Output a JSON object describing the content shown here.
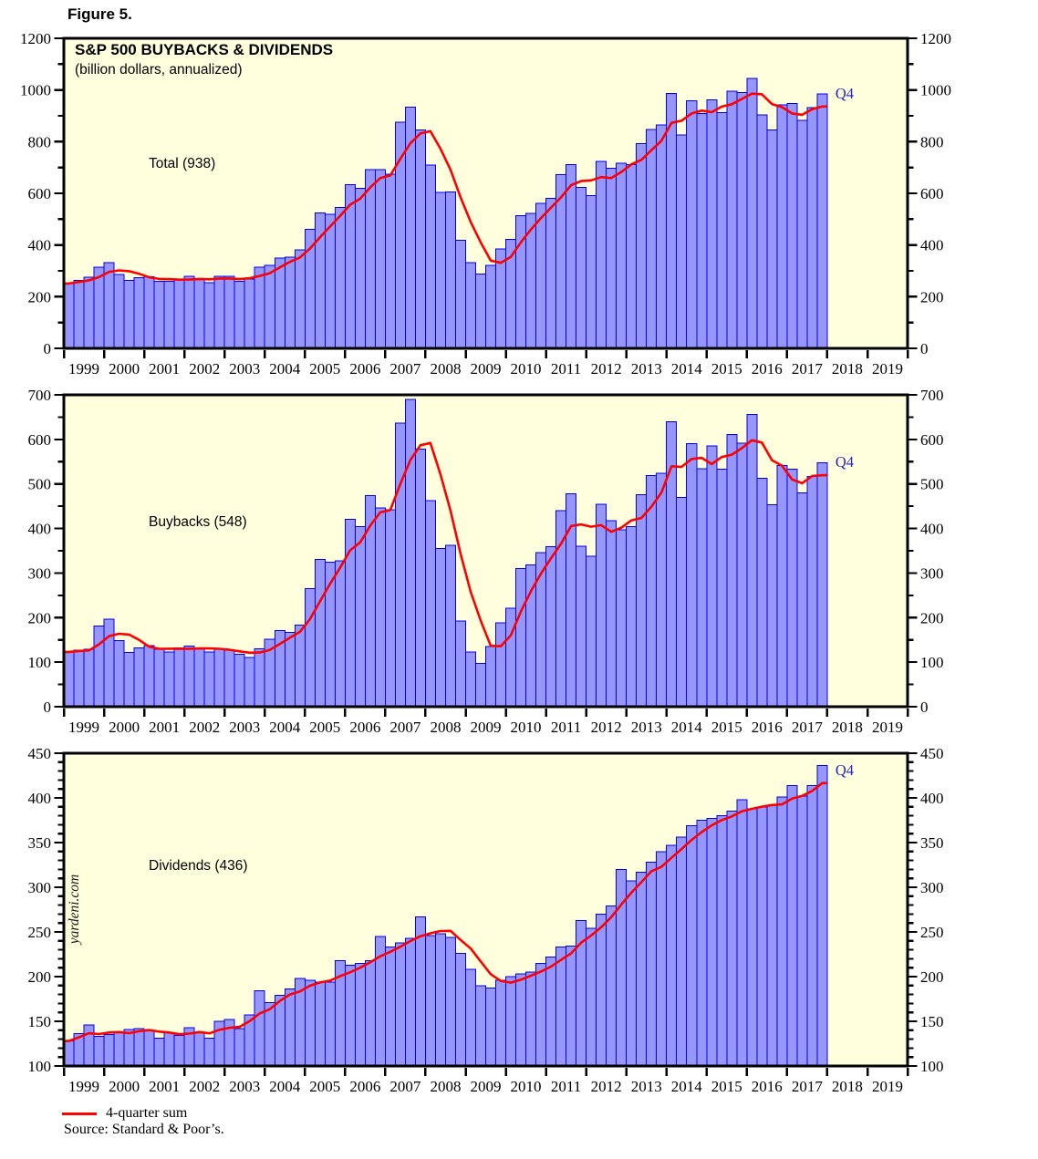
{
  "figure_label": "Figure 5.",
  "title": "S&P 500 BUYBACKS & DIVIDENDS",
  "subtitle": "(billion dollars, annualized)",
  "legend": {
    "four_quarter_sum": "4-quarter sum"
  },
  "source": "Source: Standard & Poor’s.",
  "watermark": "yardeni.com",
  "colors": {
    "plot_bg": "#FFFFDD",
    "bar_fill": "#9796FA",
    "bar_border": "#0000EE",
    "line_red": "#FF0000",
    "frame": "#000000",
    "q4_label": "#2222CC",
    "text": "#000000"
  },
  "x_axis": {
    "years": [
      "1999",
      "2000",
      "2001",
      "2002",
      "2003",
      "2004",
      "2005",
      "2006",
      "2007",
      "2008",
      "2009",
      "2010",
      "2011",
      "2012",
      "2013",
      "2014",
      "2015",
      "2016",
      "2017",
      "2018",
      "2019"
    ],
    "quarters_plotted": 76,
    "first_quarter": "1999-Q1",
    "last_quarter": "2017-Q4"
  },
  "chart_data": [
    {
      "type": "bar",
      "label": "Total (938)",
      "end_label": "Q4",
      "line": "4-quarter sum",
      "ylim": [
        0,
        1200
      ],
      "yticks": [
        0,
        200,
        400,
        600,
        800,
        1000,
        1200
      ],
      "minor_tick_step": 100,
      "values": [
        251,
        263,
        275,
        314,
        332,
        286,
        263,
        274,
        277,
        260,
        260,
        266,
        279,
        270,
        254,
        279,
        279,
        260,
        268,
        314,
        322,
        350,
        353,
        381,
        461,
        525,
        518,
        545,
        634,
        619,
        692,
        691,
        675,
        875,
        933,
        845,
        709,
        603,
        606,
        418,
        331,
        287,
        322,
        384,
        421,
        513,
        523,
        561,
        581,
        673,
        712,
        623,
        592,
        724,
        697,
        717,
        711,
        793,
        847,
        864,
        987,
        826,
        959,
        909,
        962,
        913,
        996,
        990,
        1044,
        903,
        845,
        942,
        947,
        882,
        931,
        984
      ]
    },
    {
      "type": "bar",
      "label": "Buybacks (548)",
      "end_label": "Q4",
      "line": "4-quarter sum",
      "ylim": [
        0,
        700
      ],
      "yticks": [
        0,
        100,
        200,
        300,
        400,
        500,
        600,
        700
      ],
      "minor_tick_step": 50,
      "values": [
        123,
        127,
        129,
        181,
        197,
        148,
        122,
        132,
        137,
        129,
        123,
        132,
        136,
        132,
        123,
        129,
        127,
        118,
        111,
        130,
        151,
        171,
        167,
        183,
        265,
        331,
        324,
        327,
        421,
        404,
        474,
        446,
        442,
        637,
        690,
        578,
        463,
        355,
        362,
        192,
        123,
        97,
        135,
        188,
        221,
        310,
        318,
        346,
        359,
        440,
        478,
        360,
        338,
        454,
        418,
        397,
        404,
        476,
        519,
        524,
        640,
        470,
        590,
        534,
        585,
        533,
        611,
        592,
        656,
        513,
        453,
        541,
        533,
        480,
        517,
        548
      ]
    },
    {
      "type": "bar",
      "label": "Dividends (436)",
      "end_label": "Q4",
      "line": "4-quarter sum",
      "ylim": [
        100,
        450
      ],
      "yticks": [
        100,
        150,
        200,
        250,
        300,
        350,
        400,
        450
      ],
      "minor_tick_step": 10,
      "values": [
        128,
        136,
        146,
        133,
        135,
        138,
        141,
        142,
        140,
        131,
        137,
        134,
        143,
        138,
        131,
        150,
        152,
        142,
        157,
        184,
        171,
        179,
        186,
        198,
        196,
        194,
        194,
        218,
        213,
        215,
        218,
        245,
        233,
        238,
        243,
        267,
        246,
        248,
        244,
        226,
        208,
        190,
        187,
        196,
        200,
        203,
        205,
        215,
        222,
        233,
        234,
        263,
        254,
        270,
        279,
        320,
        307,
        317,
        328,
        340,
        347,
        356,
        369,
        375,
        377,
        380,
        385,
        398,
        388,
        390,
        392,
        401,
        414,
        402,
        414,
        436
      ]
    }
  ]
}
